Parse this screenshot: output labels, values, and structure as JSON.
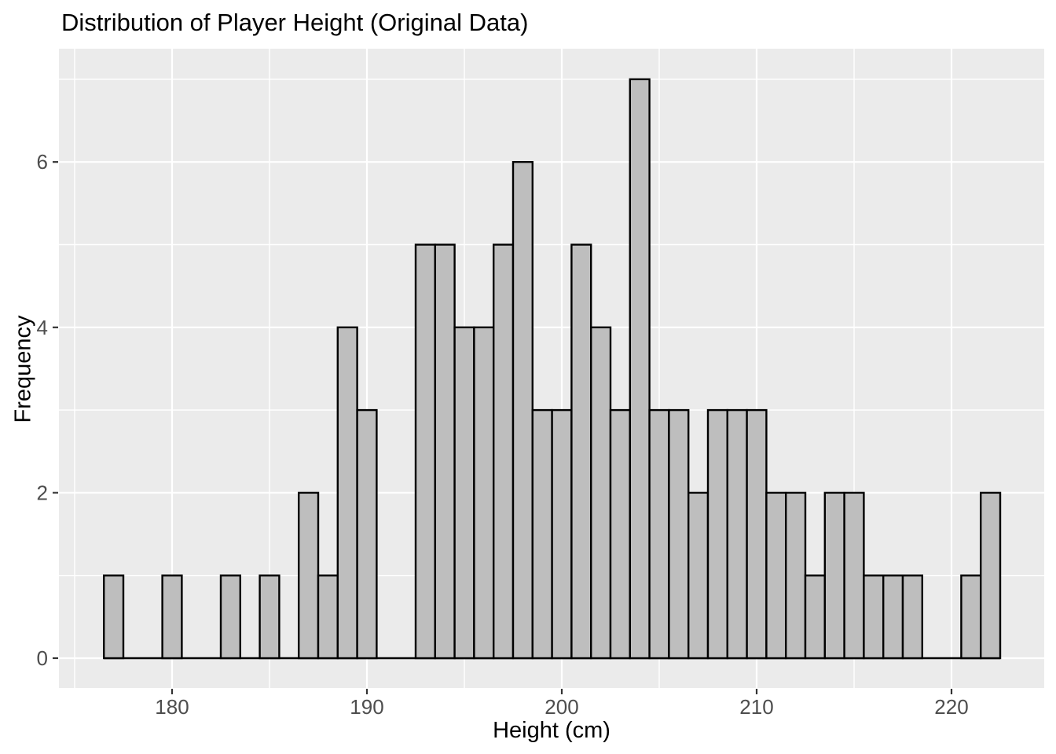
{
  "page": {
    "background": "#FFFFFF"
  },
  "chart_data": {
    "type": "bar",
    "subtype": "histogram",
    "title": "Distribution of Player Height (Original Data)",
    "xlabel": "Height (cm)",
    "ylabel": "Frequency",
    "legend": "none",
    "grid": true,
    "bin_width": 1,
    "bin_start": 176.5,
    "bin_centers": [
      177,
      178,
      179,
      180,
      181,
      182,
      183,
      184,
      185,
      186,
      187,
      188,
      189,
      190,
      191,
      192,
      193,
      194,
      195,
      196,
      197,
      198,
      199,
      200,
      201,
      202,
      203,
      204,
      205,
      206,
      207,
      208,
      209,
      210,
      211,
      212,
      213,
      214,
      215,
      216,
      217,
      218,
      219,
      220,
      221,
      222
    ],
    "counts": [
      1,
      0,
      0,
      1,
      0,
      0,
      1,
      0,
      1,
      0,
      2,
      1,
      4,
      3,
      0,
      0,
      5,
      5,
      4,
      4,
      5,
      6,
      3,
      3,
      5,
      4,
      3,
      7,
      3,
      3,
      2,
      3,
      3,
      3,
      2,
      2,
      1,
      2,
      2,
      1,
      1,
      1,
      0,
      0,
      1,
      2
    ],
    "x_ticks": [
      180,
      190,
      200,
      210,
      220
    ],
    "x_minor_ticks": [
      175,
      185,
      195,
      205,
      215
    ],
    "y_ticks": [
      0,
      2,
      4,
      6
    ],
    "y_minor_ticks": [
      1,
      3,
      5,
      7
    ],
    "xlim": [
      174.2,
      224.8
    ],
    "ylim": [
      0,
      7
    ],
    "total_observations": 100,
    "colors": {
      "panel_background": "#EBEBEB",
      "grid_major": "#FFFFFF",
      "grid_minor": "#FFFFFF",
      "bar_fill": "#BEBEBE",
      "bar_stroke": "#000000",
      "tick_mark": "#333333",
      "tick_label": "#4D4D4D",
      "axis_title": "#000000",
      "title": "#000000"
    }
  }
}
